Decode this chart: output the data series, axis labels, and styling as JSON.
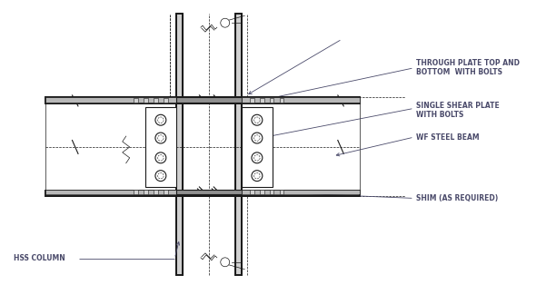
{
  "bg_color": "#ffffff",
  "line_color": "#1a1a1a",
  "fig_width": 6.01,
  "fig_height": 3.14,
  "labels": {
    "through_plate": "THROUGH PLATE TOP AND\nBOTTOM  WITH BOLTS",
    "single_shear": "SINGLE SHEAR PLATE\nWITH BOLTS",
    "wf_beam": "WF STEEL BEAM",
    "shim": "SHIM (AS REQUIRED)",
    "hss_column": "HSS COLUMN"
  },
  "label_color": "#4a4a6a",
  "label_fontsize": 5.5
}
